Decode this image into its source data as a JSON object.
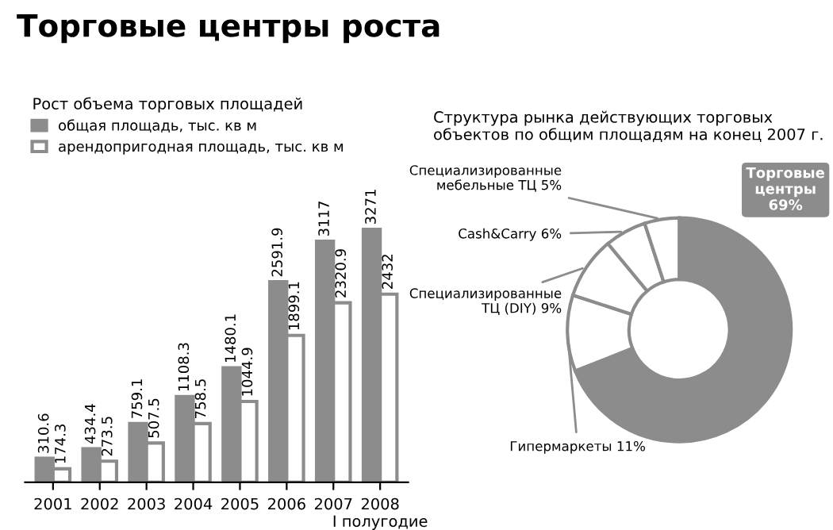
{
  "chart_data": [
    {
      "type": "bar",
      "title": "Торговые центры роста",
      "legend_title": "Рост объема торговых площадей",
      "categories": [
        "2001",
        "2002",
        "2003",
        "2004",
        "2005",
        "2006",
        "2007",
        "2008\nI полугодие"
      ],
      "series": [
        {
          "name": "общая площадь, тыс. кв м",
          "color": "#8c8c8c",
          "values": [
            310.6,
            434.4,
            759.1,
            1108.3,
            1480.1,
            2591.9,
            3117,
            3271
          ]
        },
        {
          "name": "арендопригодная площадь, тыс. кв м",
          "color": "#ffffff",
          "values": [
            174.3,
            273.5,
            507.5,
            758.5,
            1044.9,
            1899.1,
            2320.9,
            2432
          ]
        }
      ],
      "data_labels": true,
      "legend": "top left",
      "grid": false
    },
    {
      "type": "donut",
      "title": "Структура рынка действующих торговых объектов по общим площадям на конец 2007 г.",
      "categories": [
        "Торговые центры",
        "Гипермаркеты",
        "Специализированные ТЦ (DIY)",
        "Cash&Carry",
        "Специализированные мебельные ТЦ"
      ],
      "values": [
        69,
        11,
        9,
        6,
        5
      ],
      "value_labels": [
        "69%",
        "11%",
        "9%",
        "6%",
        "5%"
      ],
      "colors": [
        "#8c8c8c",
        "#ffffff",
        "#ffffff",
        "#ffffff",
        "#ffffff"
      ]
    }
  ]
}
